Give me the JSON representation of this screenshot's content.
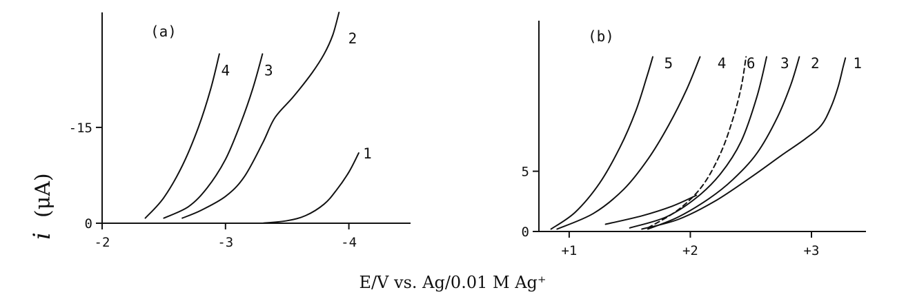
{
  "chart_data": {
    "shared_xlabel": "E/V vs. Ag/0.01 M Ag⁺",
    "ylabel": {
      "symbol": "i",
      "unit": "(μA)"
    },
    "panels": [
      {
        "panel_label": "(a)",
        "type": "line",
        "xlim": [
          -2,
          -4.5
        ],
        "ylim": [
          0,
          -33
        ],
        "xticks": [
          -2,
          -3,
          -4
        ],
        "xtick_labels": [
          "-2",
          "-3",
          "-4"
        ],
        "yticks": [
          0,
          -15
        ],
        "ytick_labels": [
          "0",
          "-15"
        ],
        "grid": false,
        "series": [
          {
            "name": "1",
            "x": [
              -3.3,
              -3.5,
              -3.65,
              -3.8,
              -3.9,
              -4.0,
              -4.08
            ],
            "y": [
              0,
              -0.4,
              -1.2,
              -3.0,
              -5.2,
              -8.0,
              -11.0
            ]
          },
          {
            "name": "2",
            "x": [
              -2.65,
              -2.8,
              -3.0,
              -3.15,
              -3.3,
              -3.4,
              -3.55,
              -3.7,
              -3.8,
              -3.87,
              -3.92
            ],
            "y": [
              -0.8,
              -2.0,
              -4.2,
              -7.2,
              -12.5,
              -16.5,
              -19.8,
              -23.5,
              -26.5,
              -29.5,
              -33.0
            ]
          },
          {
            "name": "3",
            "x": [
              -2.5,
              -2.7,
              -2.85,
              -3.0,
              -3.12,
              -3.22,
              -3.3
            ],
            "y": [
              -0.8,
              -2.6,
              -5.5,
              -10.0,
              -15.5,
              -21.0,
              -26.5
            ]
          },
          {
            "name": "4",
            "x": [
              -2.35,
              -2.5,
              -2.65,
              -2.78,
              -2.88,
              -2.95
            ],
            "y": [
              -0.8,
              -4.0,
              -9.0,
              -15.0,
              -21.0,
              -26.5
            ]
          }
        ],
        "curve_labels": [
          {
            "series": "1",
            "text": "1",
            "x": -4.15,
            "y": -11.0
          },
          {
            "series": "2",
            "text": "2",
            "x": -4.03,
            "y": -29.0
          },
          {
            "series": "3",
            "text": "3",
            "x": -3.35,
            "y": -24.0
          },
          {
            "series": "4",
            "text": "4",
            "x": -3.0,
            "y": -24.0
          }
        ]
      },
      {
        "panel_label": "(b)",
        "type": "line",
        "xlim": [
          0.75,
          3.45
        ],
        "ylim": [
          0,
          17.5
        ],
        "xticks": [
          1,
          2,
          3
        ],
        "xtick_labels": [
          "+1",
          "+2",
          "+3"
        ],
        "yticks": [
          0,
          5
        ],
        "ytick_labels": [
          "0",
          "5"
        ],
        "grid": false,
        "series": [
          {
            "name": "1",
            "x": [
              1.6,
              1.9,
              2.2,
              2.5,
              2.75,
              2.95,
              3.08,
              3.16,
              3.22,
              3.26,
              3.28
            ],
            "y": [
              0.2,
              1.0,
              2.5,
              4.5,
              6.3,
              7.7,
              8.8,
              10.3,
              12.0,
              13.6,
              14.4
            ]
          },
          {
            "name": "2",
            "x": [
              1.65,
              1.9,
              2.15,
              2.35,
              2.55,
              2.72,
              2.83,
              2.9
            ],
            "y": [
              0.2,
              1.2,
              2.7,
              4.3,
              6.5,
              9.5,
              12.2,
              14.5
            ]
          },
          {
            "name": "3",
            "x": [
              1.5,
              1.8,
              2.05,
              2.25,
              2.42,
              2.55,
              2.63
            ],
            "y": [
              0.3,
              1.2,
              2.8,
              4.8,
              7.5,
              11.2,
              14.5
            ]
          },
          {
            "name": "4",
            "x": [
              0.9,
              1.2,
              1.45,
              1.65,
              1.82,
              1.97,
              2.08
            ],
            "y": [
              0.2,
              1.5,
              3.5,
              6.0,
              8.8,
              11.8,
              14.5
            ]
          },
          {
            "name": "5",
            "x": [
              0.85,
              1.05,
              1.25,
              1.42,
              1.55,
              1.64,
              1.69
            ],
            "y": [
              0.2,
              1.6,
              4.0,
              7.0,
              10.0,
              12.8,
              14.5
            ]
          },
          {
            "name": "6",
            "x": [
              1.65,
              1.9,
              2.1,
              2.25,
              2.35,
              2.42,
              2.46
            ],
            "y": [
              0.3,
              1.8,
              3.8,
              6.5,
              9.3,
              12.0,
              14.5
            ]
          },
          {
            "name": "",
            "x": [
              1.3,
              1.6,
              1.85,
              2.05
            ],
            "y": [
              0.6,
              1.3,
              2.1,
              3.0
            ]
          }
        ],
        "dashed_series": [
          "6"
        ],
        "curve_labels": [
          {
            "series": "5",
            "text": "5",
            "x": 1.82,
            "y": 14.0
          },
          {
            "series": "4",
            "text": "4",
            "x": 2.26,
            "y": 14.0
          },
          {
            "series": "6",
            "text": "6",
            "x": 2.5,
            "y": 14.0
          },
          {
            "series": "3",
            "text": "3",
            "x": 2.78,
            "y": 14.0
          },
          {
            "series": "2",
            "text": "2",
            "x": 3.03,
            "y": 14.0
          },
          {
            "series": "1",
            "text": "1",
            "x": 3.38,
            "y": 14.0
          }
        ]
      }
    ]
  }
}
